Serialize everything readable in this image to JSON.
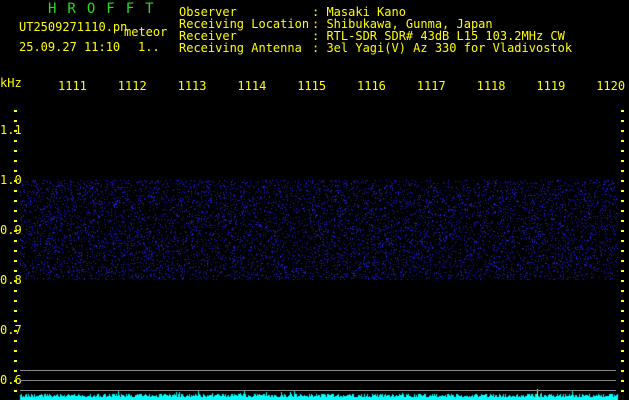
{
  "header": {
    "brand": "HROFFT",
    "filename": "UT2509271110.pn",
    "mode": "meteor",
    "datetime": "25.09.27 11:10",
    "count": "1..",
    "fields": [
      {
        "label": "Observer",
        "value": ": Masaki Kano"
      },
      {
        "label": "Receiving Location",
        "value": ": Shibukawa, Gunma, Japan"
      },
      {
        "label": "Receiver",
        "value": ": RTL-SDR SDR# 43dB L15 103.2MHz CW"
      },
      {
        "label": "Receiving Antenna",
        "value": ": 3el Yagi(V) Az 330 for Vladivostok"
      }
    ]
  },
  "axes": {
    "unit": "kHz",
    "x_ticks": [
      "1111",
      "1112",
      "1113",
      "1114",
      "1115",
      "1116",
      "1117",
      "1118",
      "1119",
      "1120"
    ],
    "y_ticks": [
      "1.1",
      "1.0",
      "0.9",
      "0.8",
      "0.7",
      "0.6"
    ]
  },
  "colors": {
    "text": "#ffff00",
    "brand": "#22dd22",
    "noise": "#2a2aff",
    "level": "#00ffff",
    "grid": "#888888"
  },
  "spectrogram": {
    "noise_band_khz": [
      0.8,
      1.0
    ]
  }
}
